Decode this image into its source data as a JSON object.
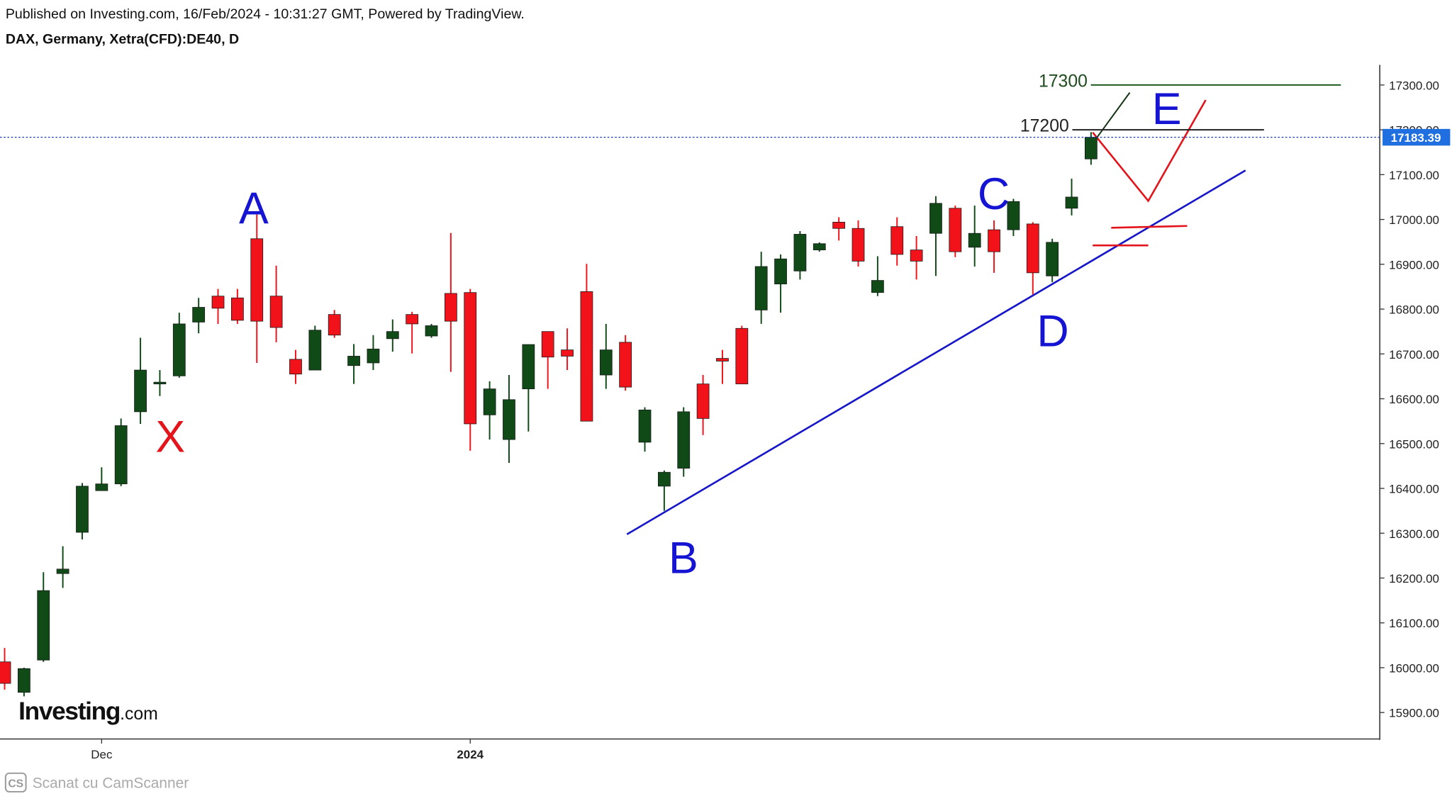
{
  "chart_data": {
    "type": "candlestick",
    "title": "Published on Investing.com, 16/Feb/2024 - 10:31:27 GMT, Powered by TradingView.",
    "subtitle": "DAX, Germany, Xetra(CFD):DE40, D",
    "categories": [
      null,
      null,
      null,
      null,
      null,
      "Dec",
      null,
      null,
      null,
      null,
      null,
      null,
      null,
      null,
      null,
      null,
      null,
      null,
      null,
      null,
      null,
      null,
      null,
      null,
      "2024",
      null,
      null,
      null,
      null,
      null,
      null,
      null,
      null,
      null,
      null,
      null,
      null,
      null,
      null,
      null,
      null,
      null,
      null,
      null,
      null,
      null,
      null,
      null,
      null,
      null,
      null,
      null,
      null,
      null,
      null,
      null,
      null
    ],
    "open": [
      16013,
      15945,
      16017,
      16210,
      16302,
      16395,
      16410,
      16571,
      16633,
      16651,
      16771,
      16829,
      16825,
      16957,
      16829,
      16688,
      16664,
      16788,
      16674,
      16680,
      16734,
      16788,
      16740,
      16835,
      16837,
      16564,
      16509,
      16622,
      16750,
      16709,
      16839,
      16653,
      16726,
      16503,
      16405,
      16445,
      16633,
      16690,
      16757,
      16798,
      16856,
      16885,
      16932,
      16994,
      16980,
      16837,
      16984,
      16932,
      16969,
      17025,
      16938,
      16977,
      16977,
      16990,
      16874,
      17025,
      17135
    ],
    "high": [
      16044,
      16000,
      16213,
      16271,
      16412,
      16447,
      16556,
      16736,
      16664,
      16792,
      16825,
      16845,
      16845,
      17011,
      16897,
      16709,
      16763,
      16798,
      16722,
      16742,
      16777,
      16794,
      16767,
      16970,
      16845,
      16639,
      16653,
      16721,
      16750,
      16757,
      16901,
      16767,
      16742,
      16581,
      16440,
      16581,
      16653,
      16709,
      16763,
      16928,
      16922,
      16974,
      16949,
      17005,
      16998,
      16918,
      17005,
      16963,
      17052,
      17031,
      17031,
      16998,
      17046,
      16994,
      16957,
      17091,
      17195
    ],
    "low": [
      15951,
      15936,
      16013,
      16178,
      16286,
      16395,
      16405,
      16544,
      16606,
      16647,
      16746,
      16767,
      16767,
      16680,
      16726,
      16633,
      16664,
      16736,
      16633,
      16664,
      16705,
      16701,
      16736,
      16660,
      16484,
      16509,
      16457,
      16527,
      16622,
      16664,
      16550,
      16622,
      16618,
      16482,
      16350,
      16426,
      16519,
      16633,
      16633,
      16767,
      16792,
      16866,
      16928,
      16953,
      16895,
      16829,
      16897,
      16866,
      16874,
      16916,
      16895,
      16881,
      16963,
      16833,
      16860,
      17009,
      17122
    ],
    "close": [
      15965,
      15998,
      16172,
      16220,
      16405,
      16410,
      16540,
      16664,
      16637,
      16767,
      16804,
      16802,
      16775,
      16773,
      16759,
      16655,
      16753,
      16742,
      16695,
      16711,
      16750,
      16767,
      16763,
      16773,
      16544,
      16622,
      16598,
      16721,
      16693,
      16695,
      16550,
      16709,
      16626,
      16575,
      16436,
      16571,
      16556,
      16684,
      16633,
      16895,
      16912,
      16967,
      16946,
      16980,
      16907,
      16864,
      16922,
      16907,
      17036,
      16928,
      16969,
      16928,
      17040,
      16881,
      16949,
      17050,
      17183.39
    ],
    "up_color": "#0f4a17",
    "down_color": "#f2131a",
    "ylim": [
      15841,
      17345
    ],
    "yticks": [
      {
        "value": 15900,
        "label": "15900.00"
      },
      {
        "value": 16000,
        "label": "16000.00"
      },
      {
        "value": 16100,
        "label": "16100.00"
      },
      {
        "value": 16200,
        "label": "16200.00"
      },
      {
        "value": 16300,
        "label": "16300.00"
      },
      {
        "value": 16400,
        "label": "16400.00"
      },
      {
        "value": 16500,
        "label": "16500.00"
      },
      {
        "value": 16600,
        "label": "16600.00"
      },
      {
        "value": 16700,
        "label": "16700.00"
      },
      {
        "value": 16800,
        "label": "16800.00"
      },
      {
        "value": 16900,
        "label": "16900.00"
      },
      {
        "value": 17000,
        "label": "17000.00"
      },
      {
        "value": 17100,
        "label": "17100.00"
      },
      {
        "value": 17200,
        "label": "17200.00"
      },
      {
        "value": 17300,
        "label": "17300.00"
      }
    ],
    "levels": [
      17300,
      17200
    ],
    "wave_labels": [
      {
        "text": "A",
        "color": "#1414d2"
      },
      {
        "text": "X",
        "color": "#e3141c"
      },
      {
        "text": "B",
        "color": "#1414d2"
      },
      {
        "text": "C",
        "color": "#1414d2"
      },
      {
        "text": "D",
        "color": "#1414d2"
      },
      {
        "text": "E",
        "color": "#1414d2"
      }
    ],
    "logo": {
      "name": "Investing",
      "suffix": ".com"
    },
    "watermark": {
      "badge": "CS",
      "text": "Scanat cu CamScanner"
    }
  }
}
